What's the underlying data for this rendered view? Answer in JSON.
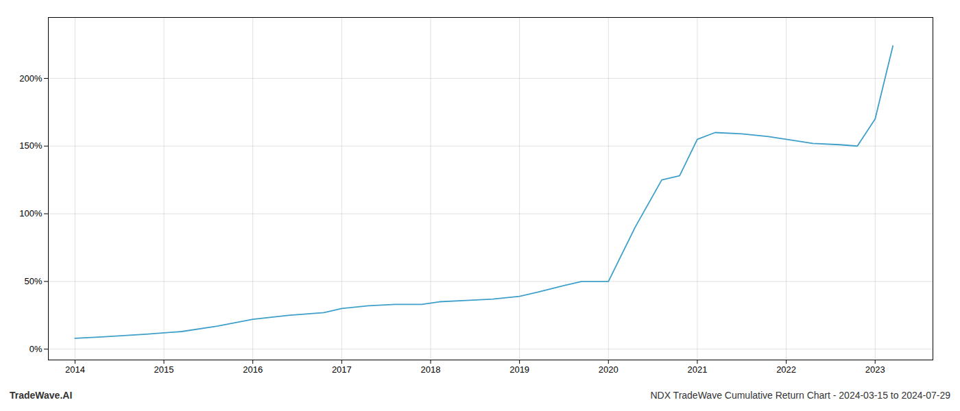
{
  "chart_data": {
    "type": "line",
    "x": [
      2014.0,
      2014.3,
      2014.8,
      2015.2,
      2015.6,
      2016.0,
      2016.4,
      2016.8,
      2017.0,
      2017.3,
      2017.6,
      2017.9,
      2018.1,
      2018.4,
      2018.7,
      2019.0,
      2019.2,
      2019.5,
      2019.7,
      2020.0,
      2020.3,
      2020.6,
      2020.8,
      2021.0,
      2021.2,
      2021.5,
      2021.8,
      2022.0,
      2022.3,
      2022.6,
      2022.8,
      2023.0,
      2023.2
    ],
    "values": [
      8,
      9,
      11,
      13,
      17,
      22,
      25,
      27,
      30,
      32,
      33,
      33,
      35,
      36,
      37,
      39,
      42,
      47,
      50,
      50,
      90,
      125,
      128,
      155,
      160,
      159,
      157,
      155,
      152,
      151,
      150,
      170,
      224
    ],
    "color": "#3d9fca",
    "xlim": [
      2013.7,
      2023.65
    ],
    "ylim": [
      -8,
      245
    ],
    "xticks": [
      2014,
      2015,
      2016,
      2017,
      2018,
      2019,
      2020,
      2021,
      2022,
      2023
    ],
    "yticks": [
      {
        "value": 0,
        "label": "0%"
      },
      {
        "value": 50,
        "label": "50%"
      },
      {
        "value": 100,
        "label": "100%"
      },
      {
        "value": 150,
        "label": "150%"
      },
      {
        "value": 200,
        "label": "200%"
      }
    ],
    "grid": true,
    "annotations": [
      "TradeWave.AI",
      "NDX TradeWave Cumulative Return Chart - 2024-03-15 to 2024-07-29"
    ]
  }
}
